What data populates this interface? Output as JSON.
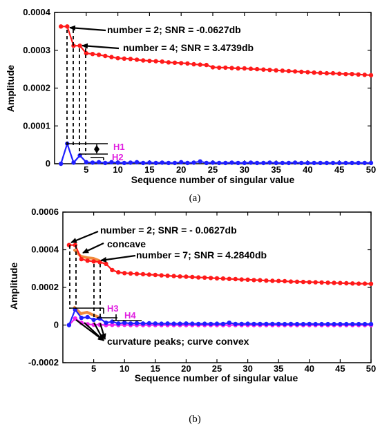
{
  "colors": {
    "red_series": "#ff1a1a",
    "blue_series": "#1f1fff",
    "magenta_series": "#ee22ee",
    "orange_highlight": "#f08a3c",
    "h_label": "#e020e0",
    "text": "#000000"
  },
  "chart_data": [
    {
      "type": "line",
      "caption": "(a)",
      "xlabel": "Sequence number of singular value",
      "ylabel": "Amplitude",
      "xlim": [
        0,
        50
      ],
      "ylim": [
        0,
        0.0004
      ],
      "xticks": [
        5,
        10,
        15,
        20,
        25,
        30,
        35,
        40,
        45,
        50
      ],
      "yticks": [
        "0",
        "0.0001",
        "0.0002",
        "0.0003",
        "0.0004"
      ],
      "yticks_values": [
        0,
        0.0001,
        0.0002,
        0.0003,
        0.0004
      ],
      "grid": false,
      "series": [
        {
          "color": "#ff1a1a",
          "x": [
            1,
            2,
            3,
            4,
            5,
            6,
            7,
            8,
            9,
            10,
            11,
            12,
            13,
            14,
            15,
            16,
            17,
            18,
            19,
            20,
            21,
            22,
            23,
            24,
            25,
            26,
            27,
            28,
            29,
            30,
            31,
            32,
            33,
            34,
            35,
            36,
            37,
            38,
            39,
            40,
            41,
            42,
            43,
            44,
            45,
            46,
            47,
            48,
            49,
            50
          ],
          "y": [
            0.000363,
            0.000363,
            0.000312,
            0.000312,
            0.000292,
            0.00029,
            0.000288,
            0.000285,
            0.000282,
            0.000279,
            0.000278,
            0.000277,
            0.000275,
            0.000273,
            0.000272,
            0.000271,
            0.00027,
            0.000268,
            0.000267,
            0.000266,
            0.000265,
            0.000263,
            0.000262,
            0.000261,
            0.000255,
            0.000254,
            0.000254,
            0.000253,
            0.000252,
            0.000252,
            0.000251,
            0.00025,
            0.000249,
            0.000248,
            0.000247,
            0.000246,
            0.000245,
            0.000244,
            0.000243,
            0.000242,
            0.000241,
            0.00024,
            0.000239,
            0.000239,
            0.000238,
            0.000237,
            0.000237,
            0.000236,
            0.000235,
            0.000234
          ]
        },
        {
          "color": "#1f1fff",
          "x": [
            1,
            2,
            3,
            4,
            5,
            6,
            7,
            8,
            9,
            10,
            11,
            12,
            13,
            14,
            15,
            16,
            17,
            18,
            19,
            20,
            21,
            22,
            23,
            24,
            25,
            26,
            27,
            28,
            29,
            30,
            31,
            32,
            33,
            34,
            35,
            36,
            37,
            38,
            39,
            40,
            41,
            42,
            43,
            44,
            45,
            46,
            47,
            48,
            49,
            50
          ],
          "y": [
            0.0,
            5.3e-05,
            3e-06,
            2.2e-05,
            4e-06,
            3e-06,
            4e-06,
            2e-06,
            4e-06,
            3e-06,
            2e-06,
            3e-06,
            4e-06,
            2e-06,
            3e-06,
            2e-06,
            3e-06,
            2e-06,
            2e-06,
            4e-06,
            2e-06,
            3e-06,
            6e-06,
            2e-06,
            3e-06,
            2e-06,
            2e-06,
            3e-06,
            2e-06,
            2e-06,
            3e-06,
            2e-06,
            2e-06,
            3e-06,
            2e-06,
            2e-06,
            2e-06,
            3e-06,
            2e-06,
            2e-06,
            2e-06,
            2e-06,
            2e-06,
            2e-06,
            2e-06,
            2e-06,
            2e-06,
            2e-06,
            2e-06,
            2e-06
          ]
        }
      ],
      "annotations": [
        {
          "text": "number = 2; SNR = -0.0627db",
          "x": 2,
          "y": 0.000363
        },
        {
          "text": "number = 4; SNR = 3.4739db",
          "x": 4,
          "y": 0.000312
        }
      ],
      "h_labels": [
        "H1",
        "H2"
      ]
    },
    {
      "type": "line",
      "caption": "(b)",
      "xlabel": "Sequence number of singular value",
      "ylabel": "Amplitude",
      "xlim": [
        0,
        50
      ],
      "ylim": [
        -0.0002,
        0.0006
      ],
      "xticks": [
        5,
        10,
        15,
        20,
        25,
        30,
        35,
        40,
        45,
        50
      ],
      "yticks": [
        "-0.0002",
        "0",
        "0.0002",
        "0.0004",
        "0.0006"
      ],
      "yticks_values": [
        -0.0002,
        0,
        0.0002,
        0.0004,
        0.0006
      ],
      "grid": false,
      "series": [
        {
          "color": "#ff1a1a",
          "x": [
            1,
            2,
            3,
            4,
            5,
            6,
            7,
            8,
            9,
            10,
            11,
            12,
            13,
            14,
            15,
            16,
            17,
            18,
            19,
            20,
            21,
            22,
            23,
            24,
            25,
            26,
            27,
            28,
            29,
            30,
            31,
            32,
            33,
            34,
            35,
            36,
            37,
            38,
            39,
            40,
            41,
            42,
            43,
            44,
            45,
            46,
            47,
            48,
            49,
            50
          ],
          "y": [
            0.000425,
            0.000425,
            0.00035,
            0.000342,
            0.000338,
            0.000334,
            0.000325,
            0.000292,
            0.00028,
            0.000276,
            0.000274,
            0.000272,
            0.00027,
            0.000268,
            0.000266,
            0.000264,
            0.000262,
            0.00026,
            0.000258,
            0.000257,
            0.000255,
            0.000253,
            0.000252,
            0.00025,
            0.000248,
            0.000247,
            0.000245,
            0.000244,
            0.000242,
            0.000241,
            0.000239,
            0.000238,
            0.000236,
            0.000235,
            0.000234,
            0.000233,
            0.000231,
            0.00023,
            0.000229,
            0.000228,
            0.000227,
            0.000226,
            0.000225,
            0.000224,
            0.000223,
            0.000222,
            0.000221,
            0.00022,
            0.00022,
            0.000219
          ]
        },
        {
          "color": "#1f1fff",
          "x": [
            1,
            2,
            3,
            4,
            5,
            6,
            7,
            8,
            9,
            10,
            11,
            12,
            13,
            14,
            15,
            16,
            17,
            18,
            19,
            20,
            21,
            22,
            23,
            24,
            25,
            26,
            27,
            28,
            29,
            30,
            31,
            32,
            33,
            34,
            35,
            36,
            37,
            38,
            39,
            40,
            41,
            42,
            43,
            44,
            45,
            46,
            47,
            48,
            49,
            50
          ],
          "y": [
            0.0,
            8.2e-05,
            3.8e-05,
            4.2e-05,
            2.8e-05,
            3.5e-05,
            1.2e-05,
            1.8e-05,
            8e-06,
            1.2e-05,
            8e-06,
            1e-05,
            8e-06,
            9e-06,
            8e-06,
            7e-06,
            8e-06,
            7e-06,
            7e-06,
            8e-06,
            7e-06,
            6e-06,
            7e-06,
            6e-06,
            7e-06,
            6e-06,
            1.2e-05,
            6e-06,
            6e-06,
            7e-06,
            6e-06,
            6e-06,
            6e-06,
            6e-06,
            6e-06,
            5e-06,
            6e-06,
            5e-06,
            5e-06,
            6e-06,
            5e-06,
            5e-06,
            5e-06,
            5e-06,
            5e-06,
            5e-06,
            5e-06,
            5e-06,
            5e-06,
            5e-06
          ]
        },
        {
          "color": "#ee22ee",
          "x": [
            1,
            2,
            3,
            4,
            5,
            6,
            7,
            8,
            9,
            10,
            11,
            12,
            13,
            14,
            15,
            16,
            17,
            18,
            19,
            20,
            21,
            22,
            23,
            24,
            25,
            26,
            27,
            28,
            29,
            30,
            31,
            32,
            33,
            34,
            35,
            36,
            37,
            38,
            39,
            40,
            41,
            42,
            43,
            44,
            45,
            46,
            47,
            48,
            49,
            50
          ],
          "y": [
            0.0,
            3.5e-05,
            1.2e-05,
            4e-06,
            2e-06,
            2e-06,
            0.0,
            1e-06,
            0.0,
            1e-06,
            0.0,
            0.0,
            0.0,
            0.0,
            0.0,
            0.0,
            0.0,
            0.0,
            0.0,
            0.0,
            0.0,
            0.0,
            0.0,
            0.0,
            0.0,
            0.0,
            0.0,
            0.0,
            0.0,
            0.0,
            0.0,
            0.0,
            0.0,
            0.0,
            0.0,
            0.0,
            0.0,
            0.0,
            0.0,
            0.0,
            0.0,
            0.0,
            0.0,
            0.0,
            0.0,
            0.0,
            0.0,
            0.0,
            0.0,
            0.0
          ]
        }
      ],
      "annotations": [
        {
          "text": "number = 2; SNR = - 0.0627db",
          "x": 2,
          "y": 0.000425
        },
        {
          "text": "concave",
          "x": 3,
          "y": 0.00035
        },
        {
          "text": "number = 7; SNR = 4.2840db",
          "x": 7,
          "y": 0.000325
        },
        {
          "text": "curvature peaks; curve convex",
          "x": 3,
          "y": 3.8e-05
        }
      ],
      "h_labels": [
        "H3",
        "H4"
      ]
    }
  ]
}
